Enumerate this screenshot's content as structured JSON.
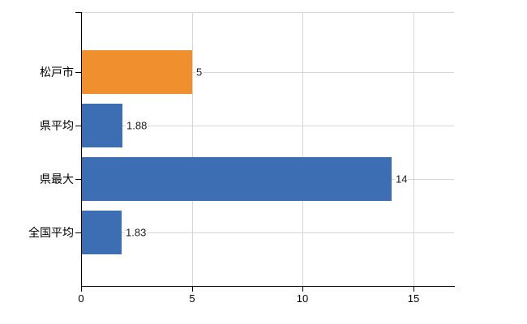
{
  "chart_data": {
    "type": "bar",
    "orientation": "horizontal",
    "title": "",
    "xlabel": "",
    "ylabel": "",
    "categories": [
      "松戸市",
      "県平均",
      "県最大",
      "全国平均"
    ],
    "values": [
      5,
      1.88,
      14,
      1.83
    ],
    "value_labels": [
      "5",
      "1.88",
      "14",
      "1.83"
    ],
    "series": [
      {
        "name": "value",
        "values": [
          5,
          1.88,
          14,
          1.83
        ],
        "bar_colors": [
          "#ef8f2e",
          "#3d6eb3",
          "#3d6eb3",
          "#3d6eb3"
        ]
      }
    ],
    "x_ticks": [
      0,
      5,
      10,
      15
    ],
    "x_tick_labels": [
      "0",
      "5",
      "10",
      "15"
    ],
    "xlim": [
      0,
      16.83
    ],
    "grid": "vertical gridlines at x ticks, top plot border, horizontal leader line through each bar center",
    "legend": "none",
    "colors": {
      "highlight_bar": "#ef8f2e",
      "default_bar": "#3d6eb3",
      "grid": "#d6d6d6",
      "axis": "#000000",
      "text": "#000000",
      "background": "#ffffff"
    }
  }
}
